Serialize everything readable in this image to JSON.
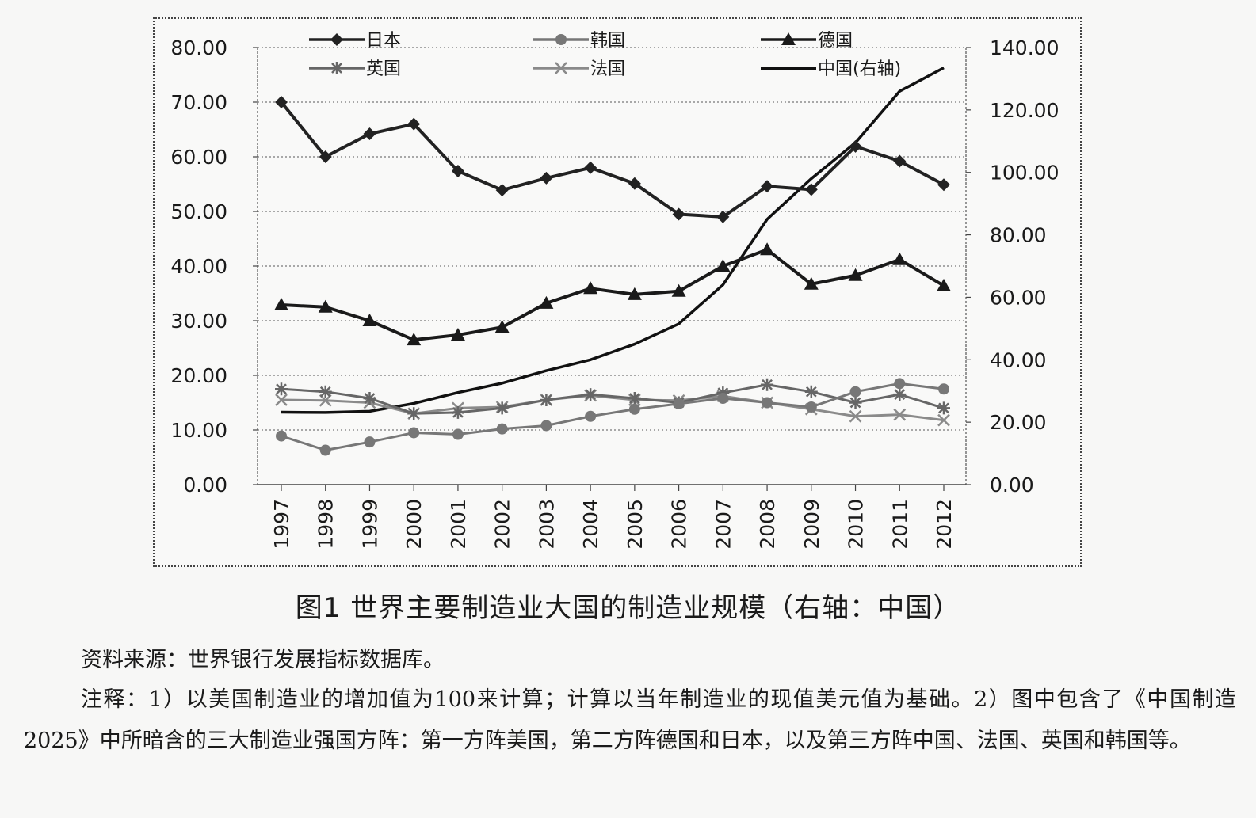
{
  "chart_data": {
    "type": "line",
    "categories": [
      "1997",
      "1998",
      "1999",
      "2000",
      "2001",
      "2002",
      "2003",
      "2004",
      "2005",
      "2006",
      "2007",
      "2008",
      "2009",
      "2010",
      "2011",
      "2012"
    ],
    "yaxis_left": {
      "range": [
        0,
        80
      ],
      "step": 10,
      "ticks": [
        "0.00",
        "10.00",
        "20.00",
        "30.00",
        "40.00",
        "50.00",
        "60.00",
        "70.00",
        "80.00"
      ]
    },
    "yaxis_right": {
      "range": [
        0,
        140
      ],
      "step": 20,
      "ticks": [
        "0.00",
        "20.00",
        "40.00",
        "60.00",
        "80.00",
        "100.00",
        "120.00",
        "140.00"
      ]
    },
    "grid": true,
    "legend_position": "top",
    "series": [
      {
        "name": "日本",
        "axis": "left",
        "color": "#222222",
        "marker": "diamond",
        "values": [
          70.0,
          60.0,
          64.2,
          66.0,
          57.4,
          53.9,
          56.1,
          58.0,
          55.1,
          49.5,
          49.0,
          54.6,
          54.0,
          61.9,
          59.2,
          54.9
        ]
      },
      {
        "name": "韩国",
        "axis": "left",
        "color": "#777777",
        "marker": "circle",
        "values": [
          8.9,
          6.3,
          7.8,
          9.5,
          9.2,
          10.2,
          10.8,
          12.5,
          13.8,
          14.8,
          15.8,
          15.0,
          14.2,
          17.0,
          18.5,
          17.5
        ]
      },
      {
        "name": "德国",
        "axis": "left",
        "color": "#1a1a1a",
        "marker": "triangle",
        "values": [
          32.9,
          32.5,
          30.0,
          26.5,
          27.4,
          28.8,
          33.2,
          35.9,
          34.8,
          35.4,
          40.0,
          43.0,
          36.7,
          38.3,
          41.2,
          36.4
        ]
      },
      {
        "name": "英国",
        "axis": "left",
        "color": "#666666",
        "marker": "star",
        "values": [
          17.5,
          17.0,
          15.8,
          13.0,
          13.2,
          14.0,
          15.5,
          16.5,
          15.8,
          15.0,
          16.8,
          18.3,
          17.0,
          15.0,
          16.5,
          14.0
        ]
      },
      {
        "name": "法国",
        "axis": "left",
        "color": "#8a8a8a",
        "marker": "x",
        "values": [
          15.5,
          15.4,
          15.0,
          13.0,
          14.0,
          14.2,
          15.5,
          16.3,
          15.5,
          15.4,
          16.2,
          15.0,
          13.8,
          12.5,
          12.8,
          11.8
        ]
      },
      {
        "name": "中国(右轴)",
        "axis": "right",
        "color": "#111111",
        "marker": "none",
        "values": [
          23.2,
          23.1,
          23.5,
          26.0,
          29.5,
          32.5,
          36.5,
          40.0,
          45.0,
          51.5,
          64.0,
          85.0,
          98.0,
          109.5,
          126.0,
          133.5
        ]
      }
    ]
  },
  "caption": "图1  世界主要制造业大国的制造业规模（右轴：中国）",
  "source": "资料来源：世界银行发展指标数据库。",
  "note": "注释：1）以美国制造业的增加值为100来计算；计算以当年制造业的现值美元值为基础。2）图中包含了《中国制造2025》中所暗含的三大制造业强国方阵：第一方阵美国，第二方阵德国和日本，以及第三方阵中国、法国、英国和韩国等。"
}
